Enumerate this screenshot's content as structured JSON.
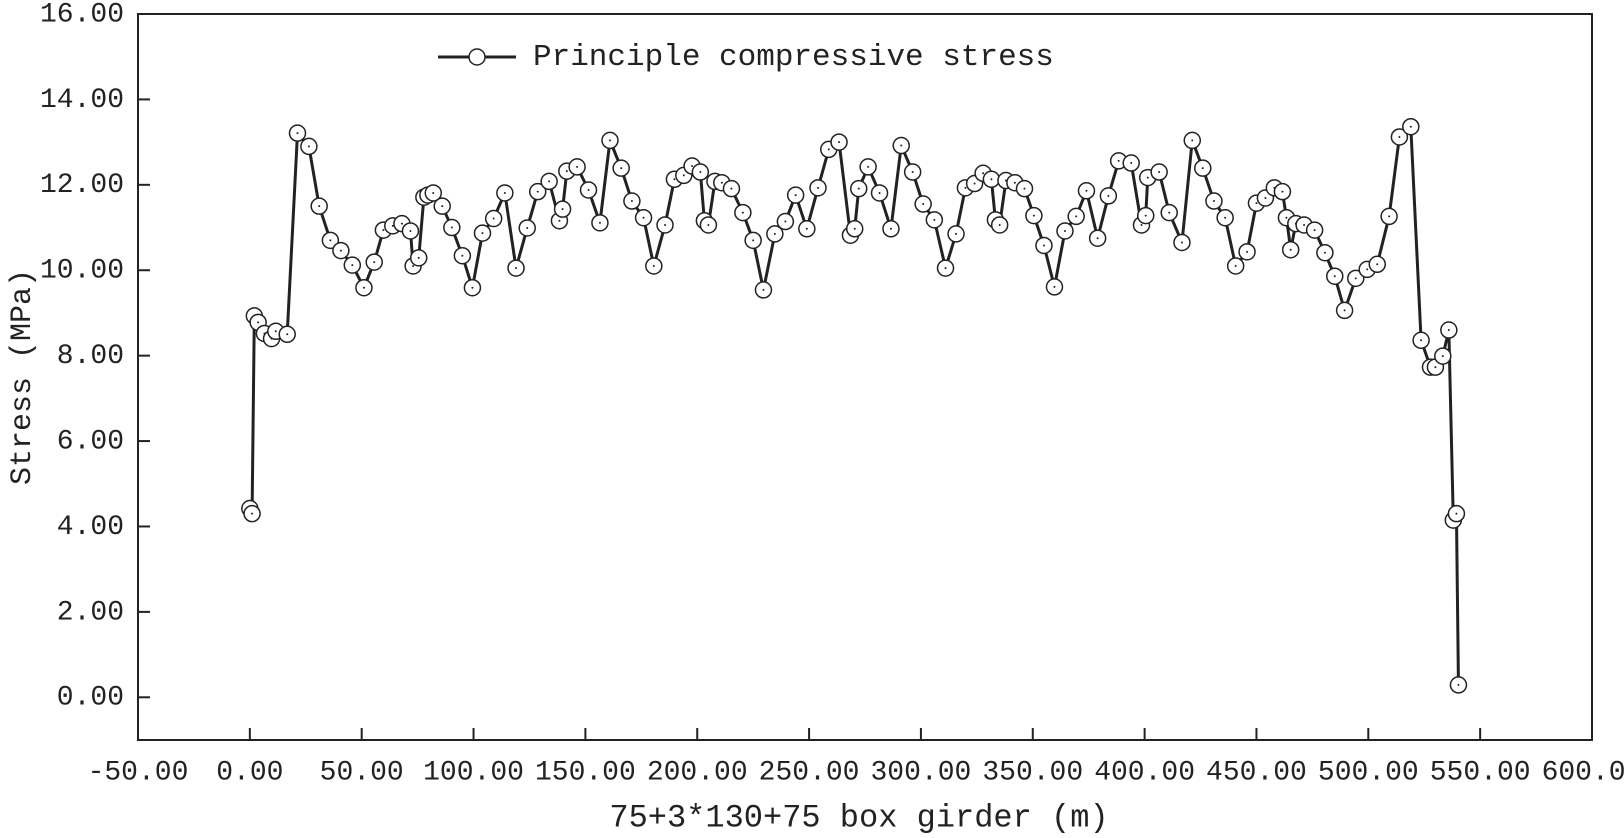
{
  "chart_data": {
    "type": "line",
    "xlabel": "75+3*130+75 box girder (m)",
    "ylabel": "Stress (MPa)",
    "xlim": [
      -50,
      600
    ],
    "ylim": [
      -1,
      16
    ],
    "xticks": [
      {
        "value": -50,
        "label": "-50.00"
      },
      {
        "value": 0,
        "label": "0.00"
      },
      {
        "value": 50,
        "label": "50.00"
      },
      {
        "value": 100,
        "label": "100.00"
      },
      {
        "value": 150,
        "label": "150.00"
      },
      {
        "value": 200,
        "label": "200.00"
      },
      {
        "value": 250,
        "label": "250.00"
      },
      {
        "value": 300,
        "label": "300.00"
      },
      {
        "value": 350,
        "label": "350.00"
      },
      {
        "value": 400,
        "label": "400.00"
      },
      {
        "value": 450,
        "label": "450.00"
      },
      {
        "value": 500,
        "label": "500.00"
      },
      {
        "value": 550,
        "label": "550.00"
      },
      {
        "value": 600,
        "label": "600.00"
      }
    ],
    "yticks": [
      {
        "value": 0,
        "label": "0.00"
      },
      {
        "value": 2,
        "label": "2.00"
      },
      {
        "value": 4,
        "label": "4.00"
      },
      {
        "value": 6,
        "label": "6.00"
      },
      {
        "value": 8,
        "label": "8.00"
      },
      {
        "value": 10,
        "label": "10.00"
      },
      {
        "value": 12,
        "label": "12.00"
      },
      {
        "value": 14,
        "label": "14.00"
      },
      {
        "value": 16,
        "label": "16.00"
      }
    ],
    "legend": "top-left",
    "grid": false,
    "x": [
      0,
      1,
      2,
      3.7,
      6.5,
      9.7,
      11.6,
      16.7,
      21.3,
      26.4,
      31,
      36,
      40.7,
      45.8,
      51,
      55.6,
      59.7,
      63.9,
      68,
      71.8,
      73,
      75.5,
      77.8,
      79.6,
      82,
      86,
      90.3,
      95,
      99.5,
      104,
      109,
      114,
      119,
      124,
      128.7,
      133.8,
      138.4,
      139.8,
      141.7,
      146.3,
      151.4,
      156.5,
      161,
      166,
      170.8,
      176,
      180.6,
      185.6,
      189.8,
      194,
      197.7,
      201.4,
      203.2,
      205,
      207.9,
      211,
      215.3,
      220.4,
      225,
      229.6,
      234.7,
      239.4,
      244,
      249,
      254,
      258.8,
      263.4,
      268.5,
      270.4,
      272.2,
      276.4,
      281.5,
      286.6,
      291.2,
      296.3,
      301,
      306,
      311,
      315.7,
      319.9,
      324,
      327.8,
      331.5,
      333.3,
      335.2,
      338,
      342,
      346.3,
      350.5,
      355,
      359.7,
      364.4,
      369.4,
      374,
      379,
      383.8,
      388.4,
      394,
      398.6,
      400.5,
      401.4,
      406.5,
      411,
      416.7,
      421.3,
      426,
      431,
      436,
      440.7,
      445.8,
      450,
      454,
      458,
      461.6,
      463.4,
      465.3,
      467.6,
      471.3,
      476,
      480.6,
      485,
      489.4,
      494.4,
      499.5,
      504,
      509.3,
      513.9,
      519,
      523.6,
      527.8,
      530,
      533.3,
      536,
      538,
      539.4,
      540.3
    ],
    "series": [
      {
        "name": "Principle compressive stress",
        "color": "#222222",
        "values": [
          4.42,
          4.3,
          8.93,
          8.78,
          8.52,
          8.4,
          8.57,
          8.5,
          13.21,
          12.9,
          11.5,
          10.7,
          10.46,
          10.12,
          9.59,
          10.19,
          10.94,
          11.04,
          11.09,
          10.92,
          10.1,
          10.29,
          11.71,
          11.76,
          11.81,
          11.5,
          11.0,
          10.34,
          9.59,
          10.87,
          11.21,
          11.81,
          10.05,
          10.99,
          11.84,
          12.08,
          11.16,
          11.43,
          12.32,
          12.42,
          11.88,
          11.11,
          13.04,
          12.39,
          11.62,
          11.23,
          10.1,
          11.06,
          12.13,
          12.22,
          12.44,
          12.3,
          11.16,
          11.06,
          12.08,
          12.05,
          11.91,
          11.35,
          10.7,
          9.54,
          10.85,
          11.14,
          11.76,
          10.97,
          11.93,
          12.83,
          13.0,
          10.82,
          10.97,
          11.91,
          12.42,
          11.81,
          10.97,
          12.92,
          12.3,
          11.55,
          11.18,
          10.05,
          10.85,
          11.93,
          12.03,
          12.27,
          12.13,
          11.18,
          11.06,
          12.1,
          12.05,
          11.91,
          11.28,
          10.58,
          9.61,
          10.92,
          11.26,
          11.86,
          10.75,
          11.74,
          12.56,
          12.51,
          11.06,
          11.28,
          12.17,
          12.3,
          11.35,
          10.65,
          13.04,
          12.39,
          11.62,
          11.23,
          10.1,
          10.43,
          11.57,
          11.69,
          11.93,
          11.84,
          11.23,
          10.48,
          11.09,
          11.06,
          10.94,
          10.41,
          9.86,
          9.06,
          9.81,
          10.02,
          10.14,
          11.26,
          13.12,
          13.36,
          8.36,
          7.73,
          7.73,
          7.99,
          8.6,
          4.15,
          4.3,
          0.29
        ]
      }
    ]
  }
}
